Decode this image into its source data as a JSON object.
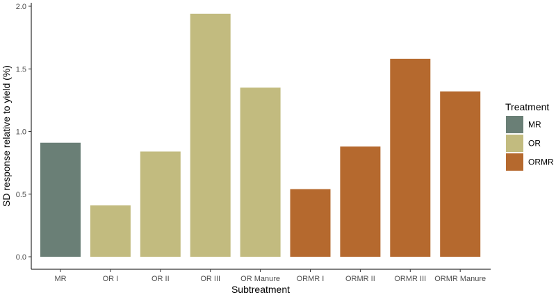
{
  "chart_data": {
    "type": "bar",
    "title": "",
    "xlabel": "Subtreatment",
    "ylabel": "SD response relative to yield (%)",
    "ylim": [
      0,
      2.0
    ],
    "yticks": [
      "0.0",
      "0.5",
      "1.0",
      "1.5",
      "2.0"
    ],
    "categories": [
      "MR",
      "OR I",
      "OR II",
      "OR III",
      "OR Manure",
      "ORMR I",
      "ORMR II",
      "ORMR III",
      "ORMR Manure"
    ],
    "values": [
      0.91,
      0.41,
      0.84,
      1.94,
      1.35,
      0.54,
      0.88,
      1.58,
      1.32
    ],
    "groups": [
      "MR",
      "OR",
      "OR",
      "OR",
      "OR",
      "ORMR",
      "ORMR",
      "ORMR",
      "ORMR"
    ],
    "grid": false,
    "legend": {
      "title": "Treatment",
      "position": "right",
      "entries": [
        {
          "label": "MR",
          "color": "#6a7f76"
        },
        {
          "label": "OR",
          "color": "#c2bb7f"
        },
        {
          "label": "ORMR",
          "color": "#b5692e"
        }
      ]
    }
  }
}
